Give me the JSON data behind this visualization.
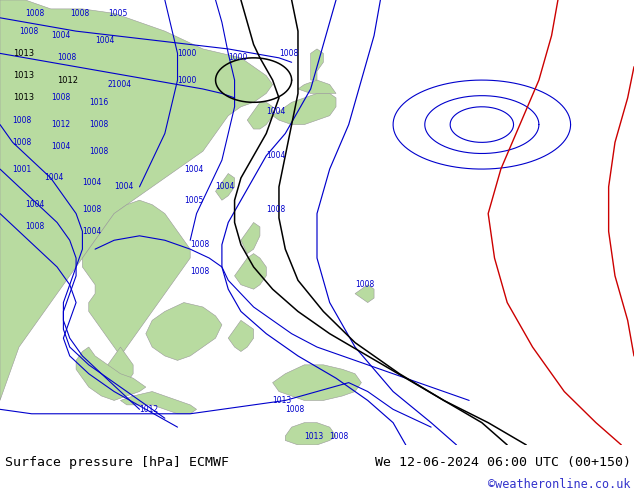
{
  "title_left": "Surface pressure [hPa] ECMWF",
  "title_right": "We 12-06-2024 06:00 UTC (00+150)",
  "copyright": "©weatheronline.co.uk",
  "copyright_color": "#3333cc",
  "ocean_color": "#e8e8e8",
  "land_color": "#b8dba0",
  "land_edge_color": "#888888",
  "footer_bg": "#ffffff"
}
